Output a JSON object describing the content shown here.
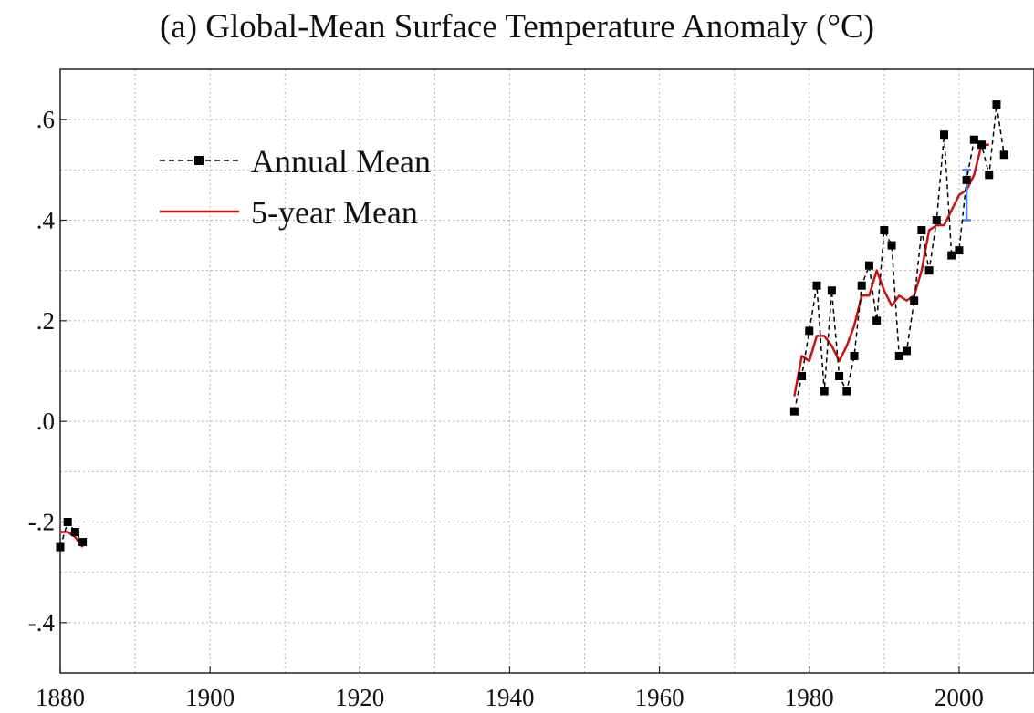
{
  "chart_data": {
    "type": "line",
    "title": "(a)  Global-Mean Surface Temperature Anomaly (°C)",
    "xlim": [
      1880,
      2010
    ],
    "ylim": [
      -0.5,
      0.7
    ],
    "x_ticks": [
      1880,
      1900,
      1920,
      1940,
      1960,
      1980,
      2000
    ],
    "x_tick_labels": [
      "1880",
      "1900",
      "1920",
      "1940",
      "1960",
      "1980",
      "2000"
    ],
    "y_ticks": [
      -0.4,
      -0.2,
      0.0,
      0.2,
      0.4,
      0.6
    ],
    "y_tick_labels": [
      "-.4",
      "-.2",
      ".0",
      ".2",
      ".4",
      ".6"
    ],
    "grid": true,
    "legend_position": "top-left",
    "series": [
      {
        "name": "Annual Mean",
        "style": "dashed-with-square-markers",
        "color": "#000000",
        "segments": [
          {
            "x": [
              1880,
              1881,
              1882,
              1883
            ],
            "y": [
              -0.25,
              -0.2,
              -0.22,
              -0.24
            ]
          },
          {
            "x": [
              1978,
              1979,
              1980,
              1981,
              1982,
              1983,
              1984,
              1985,
              1986,
              1987,
              1988,
              1989,
              1990,
              1991,
              1992,
              1993,
              1994,
              1995,
              1996,
              1997,
              1998,
              1999,
              2000,
              2001,
              2002,
              2003,
              2004,
              2005,
              2006
            ],
            "y": [
              0.02,
              0.09,
              0.18,
              0.27,
              0.06,
              0.26,
              0.09,
              0.06,
              0.13,
              0.27,
              0.31,
              0.2,
              0.38,
              0.35,
              0.13,
              0.14,
              0.24,
              0.38,
              0.3,
              0.4,
              0.57,
              0.33,
              0.34,
              0.48,
              0.56,
              0.55,
              0.49,
              0.63,
              0.53
            ]
          }
        ]
      },
      {
        "name": "5-year Mean",
        "style": "solid",
        "color": "#cc1111",
        "segments": [
          {
            "x": [
              1880,
              1881,
              1882,
              1883
            ],
            "y": [
              -0.22,
              -0.22,
              -0.23,
              -0.25
            ]
          },
          {
            "x": [
              1978,
              1979,
              1980,
              1981,
              1982,
              1983,
              1984,
              1985,
              1986,
              1987,
              1988,
              1989,
              1990,
              1991,
              1992,
              1993,
              1994,
              1995,
              1996,
              1997,
              1998,
              1999,
              2000,
              2001,
              2002,
              2003,
              2004
            ],
            "y": [
              0.05,
              0.13,
              0.12,
              0.17,
              0.17,
              0.15,
              0.12,
              0.15,
              0.19,
              0.25,
              0.25,
              0.3,
              0.26,
              0.23,
              0.25,
              0.24,
              0.25,
              0.3,
              0.38,
              0.39,
              0.39,
              0.42,
              0.45,
              0.46,
              0.49,
              0.55,
              0.55
            ]
          }
        ]
      }
    ],
    "error_bar": {
      "x": 2001,
      "y_low": 0.4,
      "y_high": 0.5,
      "color": "#4a86e8"
    }
  }
}
